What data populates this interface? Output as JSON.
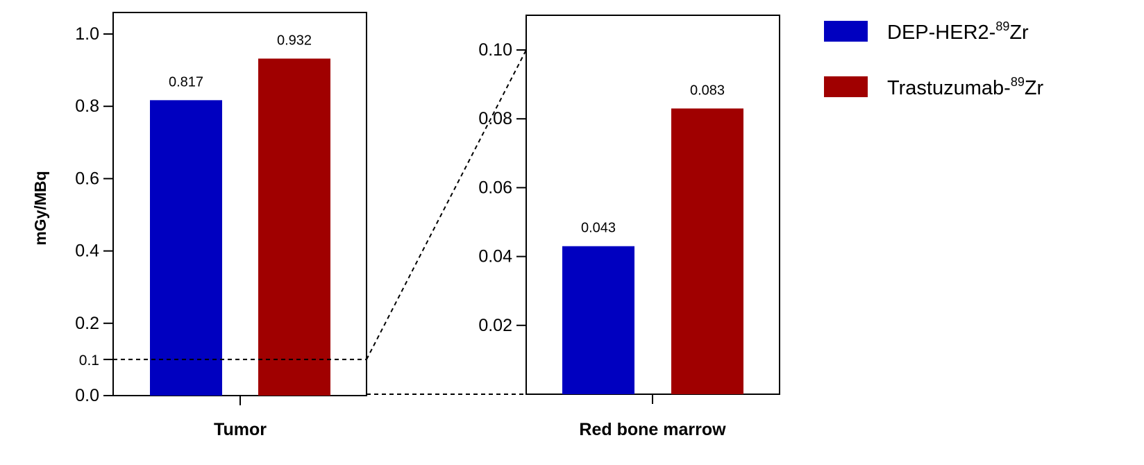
{
  "chart_data": [
    {
      "type": "bar",
      "panel": "left",
      "categories": [
        "Tumor"
      ],
      "series": [
        {
          "name": "DEP-HER2-89Zr",
          "values": [
            0.817
          ]
        },
        {
          "name": "Trastuzumab-89Zr",
          "values": [
            0.932
          ]
        }
      ],
      "data_labels": [
        "0.817",
        "0.932"
      ],
      "ylabel": "mGy/MBq",
      "ylim": [
        0,
        1.0
      ],
      "yticks": [
        0.0,
        0.1,
        0.2,
        0.4,
        0.6,
        0.8,
        1.0
      ],
      "ytick_labels": [
        "0.0",
        "0.1",
        "0.2",
        "0.4",
        "0.6",
        "0.8",
        "1.0"
      ],
      "reference_line": 0.1,
      "grid": false
    },
    {
      "type": "bar",
      "panel": "right",
      "categories": [
        "Red bone marrow"
      ],
      "series": [
        {
          "name": "DEP-HER2-89Zr",
          "values": [
            0.043
          ]
        },
        {
          "name": "Trastuzumab-89Zr",
          "values": [
            0.083
          ]
        }
      ],
      "data_labels": [
        "0.043",
        "0.083"
      ],
      "ylim": [
        0,
        0.11
      ],
      "yticks": [
        0.02,
        0.04,
        0.06,
        0.08,
        0.1
      ],
      "ytick_labels": [
        "0.02",
        "0.04",
        "0.06",
        "0.08",
        "0.10"
      ],
      "grid": false
    }
  ],
  "legend": {
    "placement": "top-right",
    "items": [
      {
        "base": "DEP-HER2-",
        "sup": "89",
        "suffix": "Zr",
        "color": "#0000c0"
      },
      {
        "base": "Trastuzumab-",
        "sup": "89",
        "suffix": "Zr",
        "color": "#a00000"
      }
    ]
  },
  "colors": {
    "series1": "#0000c0",
    "series2": "#a00000",
    "axis": "#000000"
  }
}
